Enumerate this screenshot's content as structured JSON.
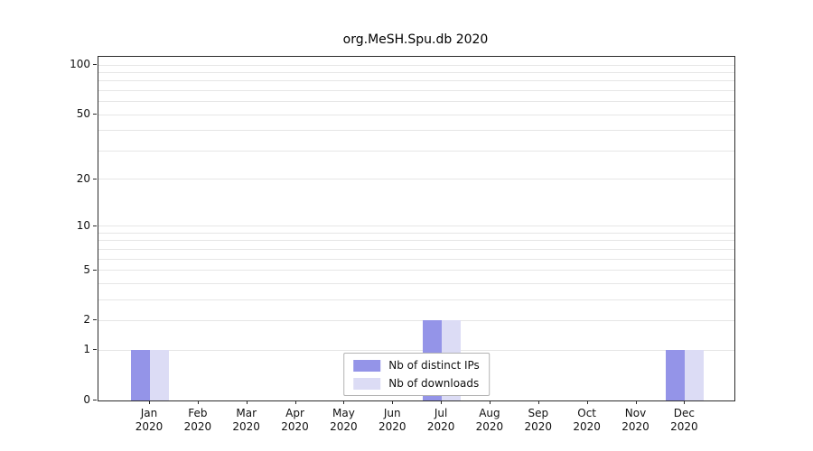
{
  "title": "org.MeSH.Spu.db 2020",
  "chart_data": {
    "type": "bar",
    "title": "org.MeSH.Spu.db 2020",
    "categories": [
      "Jan",
      "Feb",
      "Mar",
      "Apr",
      "May",
      "Jun",
      "Jul",
      "Aug",
      "Sep",
      "Oct",
      "Nov",
      "Dec"
    ],
    "x_year": "2020",
    "series": [
      {
        "name": "Nb of distinct IPs",
        "color": "#9494e8",
        "values": [
          1,
          0,
          0,
          0,
          0,
          0,
          2,
          0,
          0,
          0,
          0,
          1
        ]
      },
      {
        "name": "Nb of downloads",
        "color": "#dcdcf5",
        "values": [
          1,
          0,
          0,
          0,
          0,
          0,
          2,
          0,
          0,
          0,
          0,
          1
        ]
      }
    ],
    "y_ticks": [
      0,
      1,
      2,
      5,
      10,
      20,
      50,
      100
    ],
    "y_gridlines": [
      1,
      2,
      3,
      4,
      5,
      6,
      7,
      8,
      9,
      10,
      20,
      30,
      40,
      50,
      60,
      70,
      80,
      90,
      100
    ],
    "y_scale": "log10(1+x)",
    "ylim": [
      0,
      112
    ],
    "xlabel": "",
    "ylabel": "",
    "grid": true,
    "legend_position": "bottom-center-inside"
  },
  "colors": {
    "background": "#ffffff",
    "grid": "#e6e6e6",
    "axis": "#2b2b2b",
    "legend_border": "#b3b3b3"
  }
}
